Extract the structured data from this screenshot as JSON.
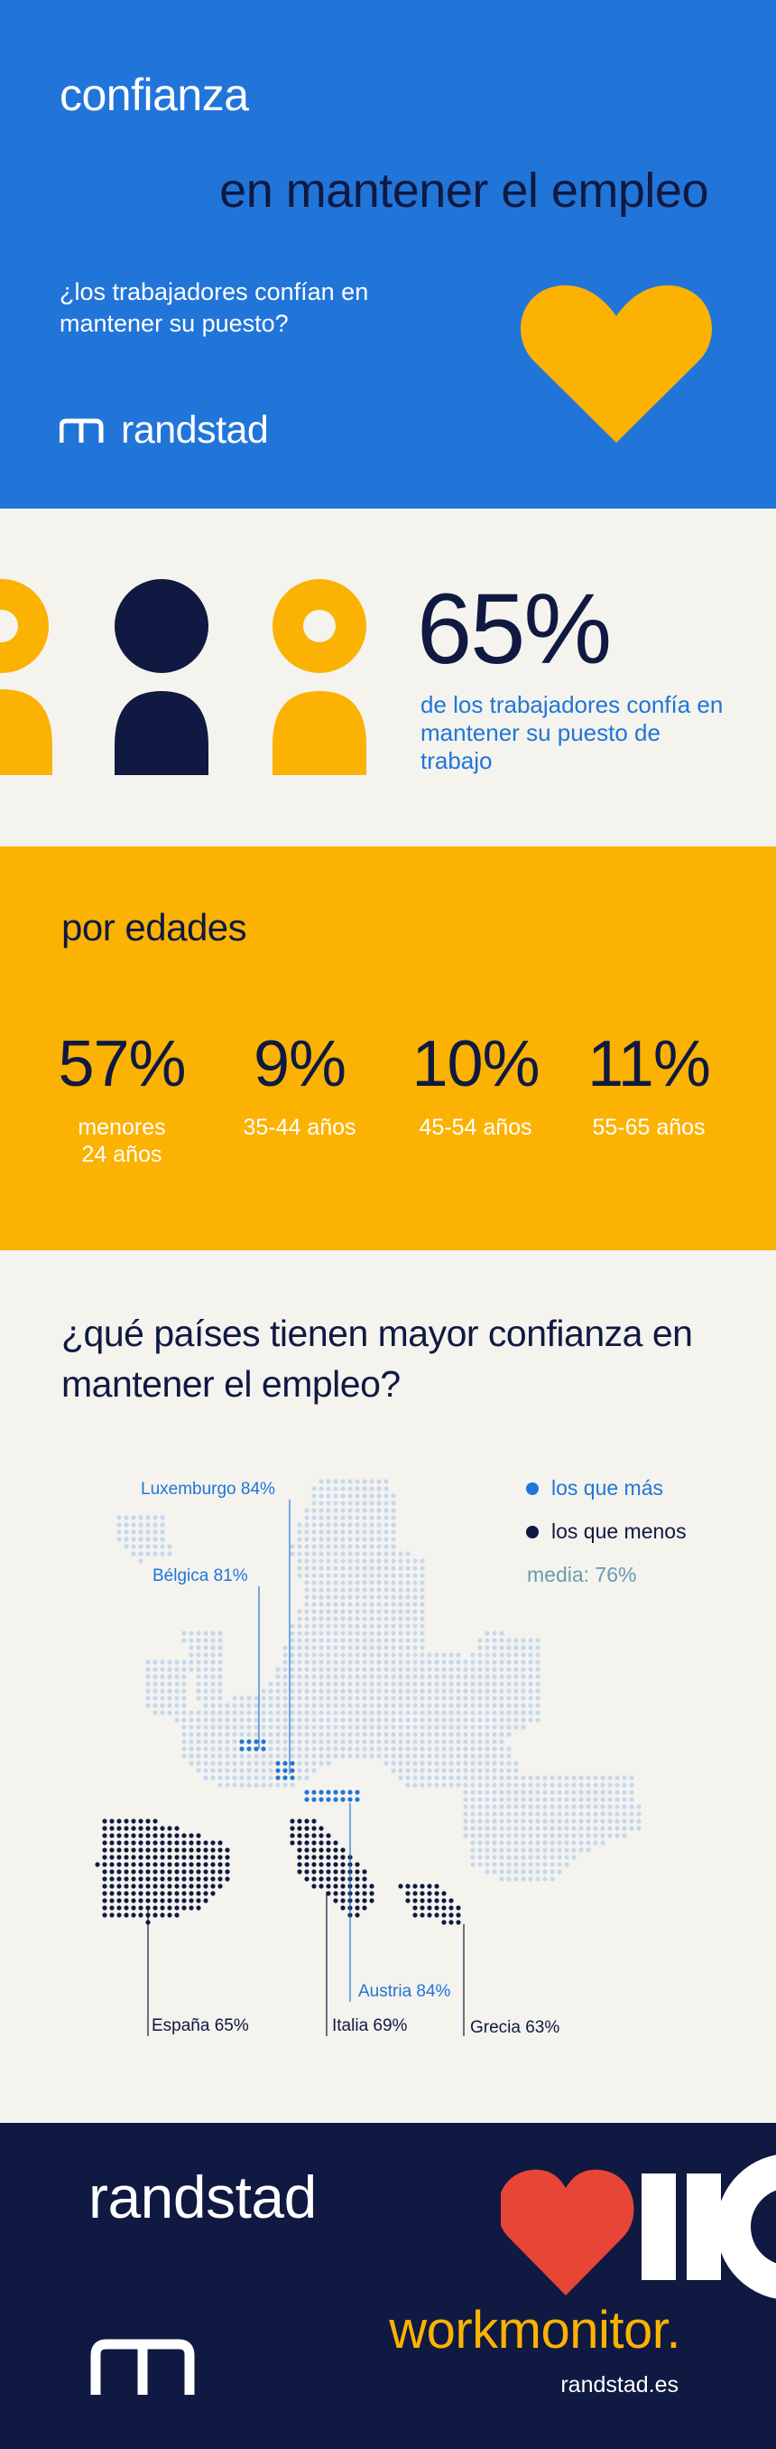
{
  "header": {
    "title": "confianza",
    "subtitle": "en mantener el empleo",
    "question": "¿los trabajadores confían en mantener su puesto?",
    "brand": "randstad",
    "heart_color": "#fbb203"
  },
  "stat": {
    "value": "65%",
    "description": "de los trabajadores confía en mantener su puesto de trabajo"
  },
  "ages": {
    "title": "por edades",
    "items": [
      {
        "value": "57%",
        "label": "menores 24 años"
      },
      {
        "value": "9%",
        "label": "35-44 años"
      },
      {
        "value": "10%",
        "label": "45-54 años"
      },
      {
        "value": "11%",
        "label": "55-65 años"
      }
    ]
  },
  "countries": {
    "title": "¿qué países tienen mayor confianza en mantener el empleo?",
    "legend": {
      "more": "los que más",
      "less": "los que menos",
      "average": "media: 76%"
    },
    "callouts": {
      "luxemburgo": "Luxemburgo 84%",
      "belgica": "Bélgica 81%",
      "austria": "Austria 84%",
      "espana": "España 65%",
      "italia": "Italia 69%",
      "grecia": "Grecia 63%"
    },
    "colors": {
      "more": "#2175d9",
      "less": "#0f1941",
      "map": "#c6d8ee",
      "average": "#6a9bb0"
    }
  },
  "footer": {
    "brand": "randstad",
    "product": "workmonitor.",
    "site": "randstad.es",
    "heart_color": "#e74536"
  }
}
